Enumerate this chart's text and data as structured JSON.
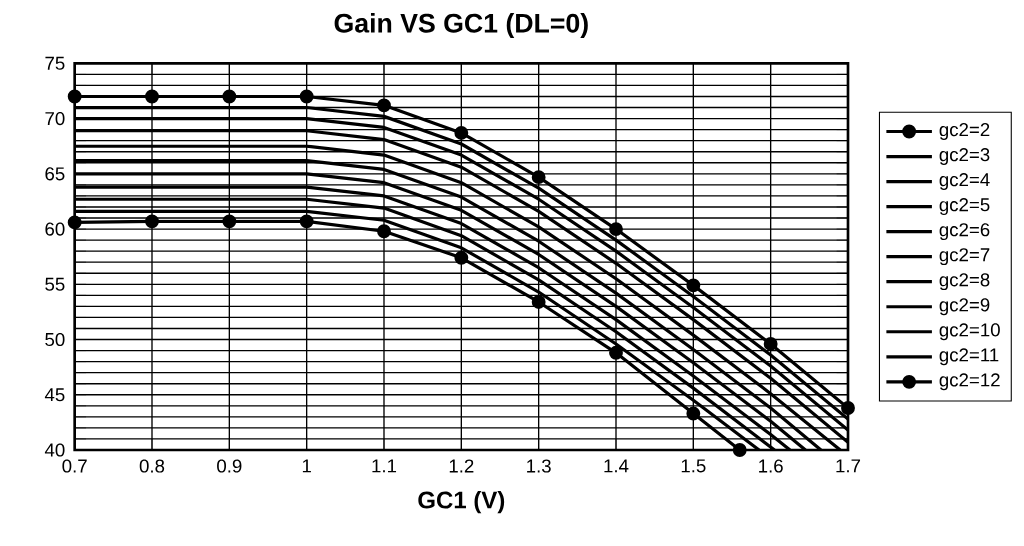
{
  "chart_data": {
    "type": "line",
    "title": "Gain VS GC1 (DL=0)",
    "xlabel": "GC1 (V)",
    "xlim": [
      0.7,
      1.7
    ],
    "ylim": [
      40,
      75
    ],
    "xticks": [
      0.7,
      0.8,
      0.9,
      1,
      1.1,
      1.2,
      1.3,
      1.4,
      1.5,
      1.6,
      1.7
    ],
    "yticks": [
      40,
      {
        "value": 41,
        "label": null
      },
      {
        "value": 42,
        "label": null
      },
      {
        "value": 43,
        "label": null
      },
      {
        "value": 44,
        "label": null
      },
      45,
      {
        "value": 46,
        "label": null
      },
      {
        "value": 47,
        "label": null
      },
      {
        "value": 48,
        "label": null
      },
      {
        "value": 49,
        "label": null
      },
      50,
      {
        "value": 51,
        "label": null
      },
      {
        "value": 52,
        "label": null
      },
      {
        "value": 53,
        "label": null
      },
      {
        "value": 54,
        "label": null
      },
      55,
      {
        "value": 56,
        "label": null
      },
      {
        "value": 57,
        "label": null
      },
      {
        "value": 58,
        "label": null
      },
      {
        "value": 59,
        "label": null
      },
      60,
      {
        "value": 61,
        "label": null
      },
      {
        "value": 62,
        "label": null
      },
      {
        "value": 63,
        "label": null
      },
      {
        "value": 64,
        "label": null
      },
      65,
      {
        "value": 66,
        "label": null
      },
      {
        "value": 67,
        "label": null
      },
      {
        "value": 68,
        "label": null
      },
      {
        "value": 69,
        "label": null
      },
      70,
      {
        "value": 71,
        "label": null
      },
      {
        "value": 72,
        "label": null
      },
      {
        "value": 73,
        "label": null
      },
      {
        "value": 74,
        "label": null
      },
      75
    ],
    "grid": true,
    "legend": "right",
    "line_style": "solid",
    "series": [
      {
        "name": "gc2=2",
        "color": "#000000",
        "marker": "circle",
        "x": [
          0.7,
          0.8,
          0.9,
          1.0,
          1.1,
          1.2,
          1.3,
          1.4,
          1.5,
          1.6,
          1.7
        ],
        "values": [
          72.0,
          72.0,
          72.0,
          72.0,
          71.2,
          68.7,
          64.7,
          60.0,
          54.9,
          49.6,
          43.8
        ]
      },
      {
        "name": "gc2=3",
        "color": "#000000",
        "marker": "none",
        "x": [
          0.7,
          0.8,
          0.9,
          1.0,
          1.1,
          1.2,
          1.3,
          1.4,
          1.5,
          1.6,
          1.7
        ],
        "values": [
          71.0,
          71.0,
          71.0,
          71.0,
          70.2,
          67.7,
          63.7,
          59.0,
          53.9,
          48.6,
          42.8
        ]
      },
      {
        "name": "gc2=4",
        "color": "#000000",
        "marker": "none",
        "x": [
          0.7,
          0.8,
          0.9,
          1.0,
          1.1,
          1.2,
          1.3,
          1.4,
          1.5,
          1.6,
          1.7
        ],
        "values": [
          70.0,
          70.0,
          70.0,
          70.0,
          69.2,
          66.7,
          62.7,
          58.0,
          52.9,
          47.6,
          41.8
        ]
      },
      {
        "name": "gc2=5",
        "color": "#000000",
        "marker": "none",
        "x": [
          0.7,
          0.8,
          0.9,
          1.0,
          1.1,
          1.2,
          1.3,
          1.4,
          1.5,
          1.6,
          1.7
        ],
        "values": [
          68.9,
          68.9,
          68.9,
          68.9,
          68.1,
          65.6,
          61.6,
          56.9,
          51.8,
          46.5,
          40.7
        ]
      },
      {
        "name": "gc2=6",
        "color": "#000000",
        "marker": "none",
        "x": [
          0.7,
          0.8,
          0.9,
          1.0,
          1.1,
          1.2,
          1.3,
          1.4,
          1.5,
          1.6,
          1.69
        ],
        "values": [
          67.5,
          67.5,
          67.5,
          67.5,
          66.7,
          64.2,
          60.2,
          55.5,
          50.4,
          45.1,
          40.0
        ]
      },
      {
        "name": "gc2=7",
        "color": "#000000",
        "marker": "none",
        "x": [
          0.7,
          0.8,
          0.9,
          1.0,
          1.1,
          1.2,
          1.3,
          1.4,
          1.5,
          1.6,
          1.665
        ],
        "values": [
          66.2,
          66.2,
          66.2,
          66.2,
          65.4,
          62.9,
          58.9,
          54.2,
          49.1,
          43.8,
          40.0
        ]
      },
      {
        "name": "gc2=8",
        "color": "#000000",
        "marker": "none",
        "x": [
          0.7,
          0.8,
          0.9,
          1.0,
          1.1,
          1.2,
          1.3,
          1.4,
          1.5,
          1.6,
          1.645
        ],
        "values": [
          65.0,
          65.0,
          65.0,
          65.0,
          64.2,
          61.7,
          57.7,
          53.0,
          47.9,
          42.6,
          40.0
        ]
      },
      {
        "name": "gc2=9",
        "color": "#000000",
        "marker": "none",
        "x": [
          0.7,
          0.8,
          0.9,
          1.0,
          1.1,
          1.2,
          1.3,
          1.4,
          1.5,
          1.6,
          1.625
        ],
        "values": [
          63.8,
          63.8,
          63.8,
          63.8,
          63.0,
          60.5,
          56.5,
          51.8,
          46.7,
          41.4,
          40.0
        ]
      },
      {
        "name": "gc2=10",
        "color": "#000000",
        "marker": "none",
        "x": [
          0.7,
          0.8,
          0.9,
          1.0,
          1.1,
          1.2,
          1.3,
          1.4,
          1.5,
          1.605
        ],
        "values": [
          62.7,
          62.7,
          62.7,
          62.7,
          61.9,
          59.4,
          55.4,
          50.7,
          45.6,
          40.0
        ]
      },
      {
        "name": "gc2=11",
        "color": "#000000",
        "marker": "none",
        "x": [
          0.7,
          0.8,
          0.9,
          1.0,
          1.1,
          1.2,
          1.3,
          1.4,
          1.5,
          1.585
        ],
        "values": [
          61.6,
          61.6,
          61.6,
          61.6,
          60.8,
          58.3,
          54.3,
          49.6,
          44.5,
          40.0
        ]
      },
      {
        "name": "gc2=12",
        "color": "#000000",
        "marker": "circle",
        "x": [
          0.7,
          0.8,
          0.9,
          1.0,
          1.1,
          1.2,
          1.3,
          1.4,
          1.5,
          1.56
        ],
        "values": [
          60.6,
          60.7,
          60.7,
          60.7,
          59.8,
          57.4,
          53.4,
          48.8,
          43.3,
          40.0
        ]
      }
    ]
  }
}
